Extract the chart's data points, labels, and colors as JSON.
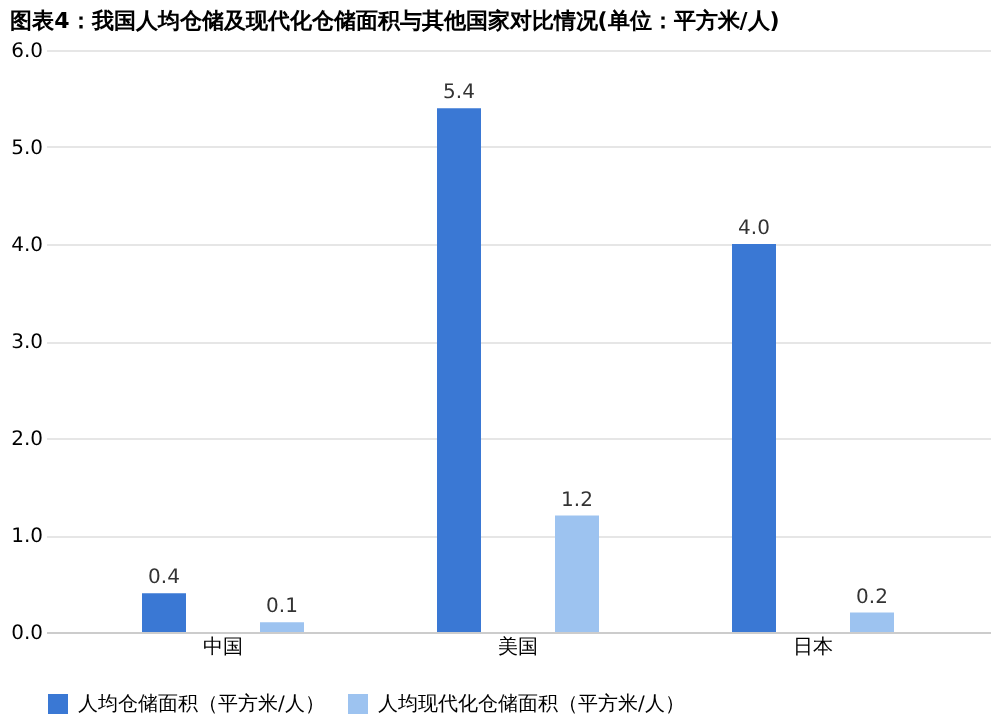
{
  "chart_data": {
    "type": "bar",
    "title": "图表4：我国人均仓储及现代化仓储面积与其他国家对比情况(单位：平方米/人)",
    "categories": [
      "中国",
      "美国",
      "日本"
    ],
    "series": [
      {
        "name": "人均仓储面积（平方米/人）",
        "color": "#3a78d4",
        "values": [
          0.4,
          5.4,
          4.0
        ],
        "value_labels": [
          "0.4",
          "5.4",
          "4.0"
        ]
      },
      {
        "name": "人均现代化仓储面积（平方米/人）",
        "color": "#9dc3f0",
        "values": [
          0.1,
          1.2,
          0.2
        ],
        "value_labels": [
          "0.1",
          "1.2",
          "0.2"
        ]
      }
    ],
    "ylim": [
      0,
      6
    ],
    "yticks": [
      {
        "value": 0,
        "label": "0.0"
      },
      {
        "value": 1,
        "label": "1.0"
      },
      {
        "value": 2,
        "label": "2.0"
      },
      {
        "value": 3,
        "label": "3.0"
      },
      {
        "value": 4,
        "label": "4.0"
      },
      {
        "value": 5,
        "label": "5.0"
      },
      {
        "value": 6,
        "label": "6.0"
      }
    ],
    "grid": "y",
    "legend": "bottom"
  }
}
